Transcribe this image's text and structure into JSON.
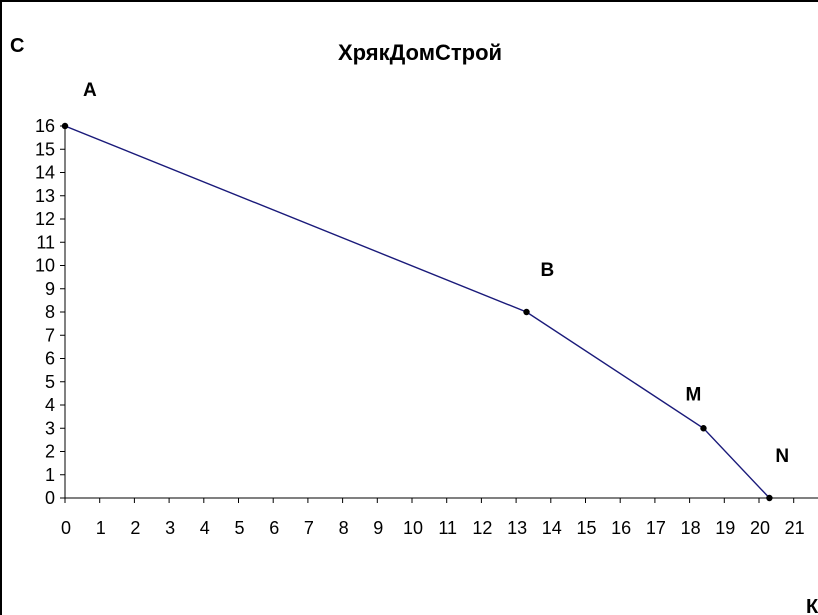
{
  "chart_data": {
    "type": "line",
    "title": "ХрякДомСтрой",
    "ylabel": "С",
    "xlabel": "К",
    "xlim": [
      0,
      21
    ],
    "ylim": [
      0,
      16
    ],
    "x_ticks": [
      "0",
      "1",
      "2",
      "3",
      "4",
      "5",
      "6",
      "7",
      "8",
      "9",
      "10",
      "11",
      "12",
      "13",
      "14",
      "15",
      "16",
      "17",
      "18",
      "19",
      "20",
      "21"
    ],
    "y_ticks": [
      "0",
      "1",
      "2",
      "3",
      "4",
      "5",
      "6",
      "7",
      "8",
      "9",
      "10",
      "11",
      "12",
      "13",
      "14",
      "15",
      "16"
    ],
    "grid": false,
    "series": [
      {
        "color": "#1a1a7a",
        "points": [
          {
            "label": "A",
            "x": 0,
            "y": 16
          },
          {
            "label": "B",
            "x": 13.3,
            "y": 8
          },
          {
            "label": "M",
            "x": 18.4,
            "y": 3
          },
          {
            "label": "N",
            "x": 20.3,
            "y": 0
          }
        ]
      }
    ]
  }
}
